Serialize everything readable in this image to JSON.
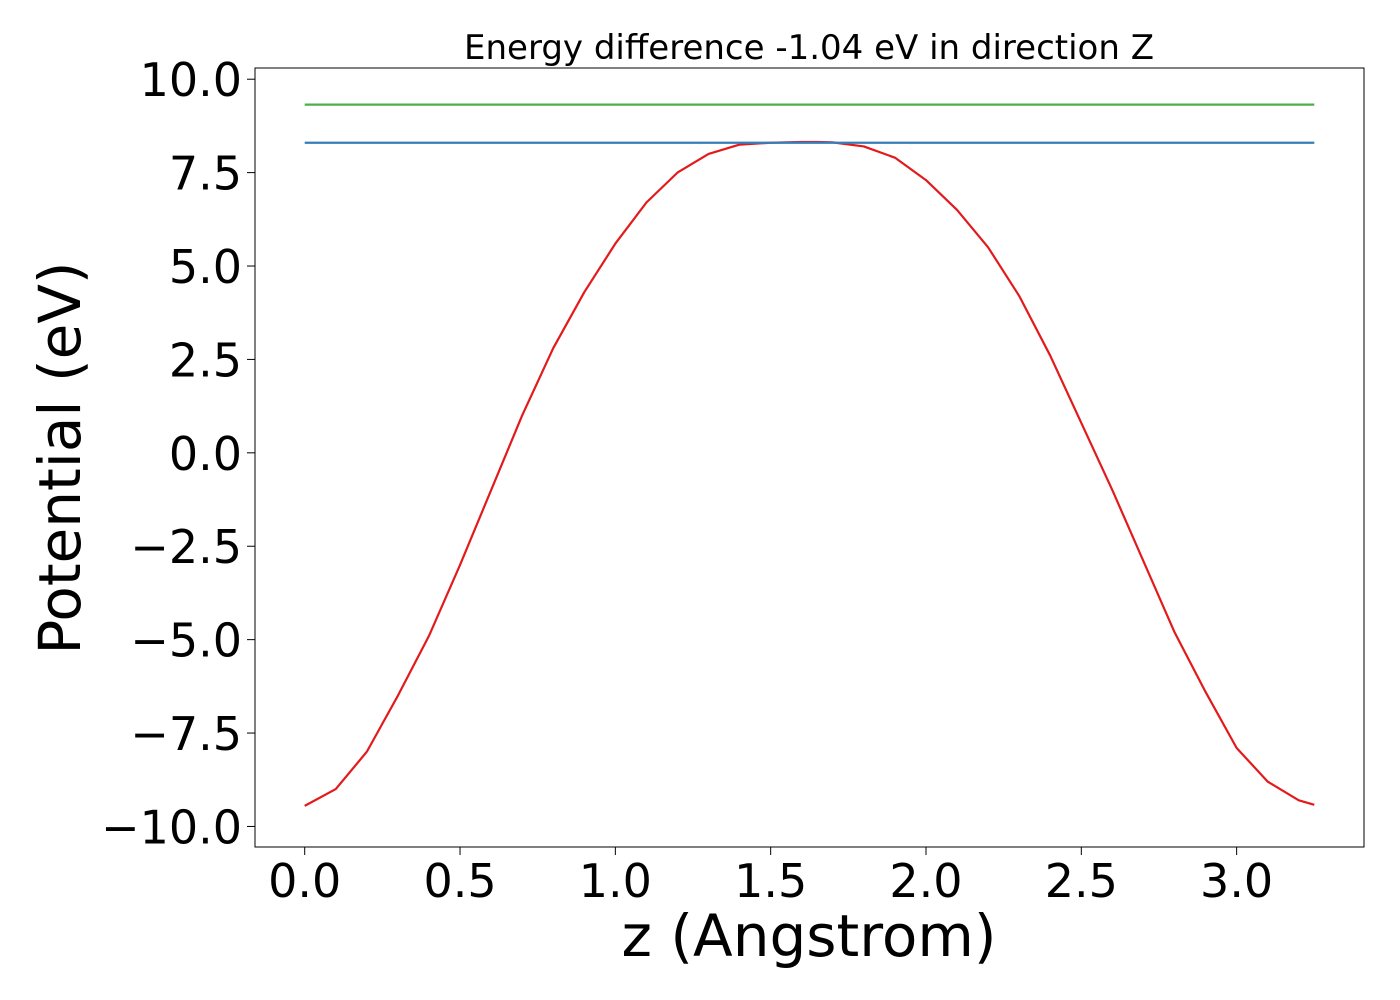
{
  "chart_data": {
    "type": "line",
    "title": "Energy difference -1.04 eV in direction Z",
    "xlabel": "z (Angstrom)",
    "ylabel": "Potential (eV)",
    "xlim": [
      -0.16,
      3.41
    ],
    "ylim": [
      -10.55,
      10.3
    ],
    "x_ticks": [
      {
        "value": 0.0,
        "label": "0.0"
      },
      {
        "value": 0.5,
        "label": "0.5"
      },
      {
        "value": 1.0,
        "label": "1.0"
      },
      {
        "value": 1.5,
        "label": "1.5"
      },
      {
        "value": 2.0,
        "label": "2.0"
      },
      {
        "value": 2.5,
        "label": "2.5"
      },
      {
        "value": 3.0,
        "label": "3.0"
      }
    ],
    "y_ticks": [
      {
        "value": -10.0,
        "label": "−10.0"
      },
      {
        "value": -7.5,
        "label": "−7.5"
      },
      {
        "value": -5.0,
        "label": "−5.0"
      },
      {
        "value": -2.5,
        "label": "−2.5"
      },
      {
        "value": 0.0,
        "label": "0.0"
      },
      {
        "value": 2.5,
        "label": "2.5"
      },
      {
        "value": 5.0,
        "label": "5.0"
      },
      {
        "value": 7.5,
        "label": "7.5"
      },
      {
        "value": 10.0,
        "label": "10.0"
      }
    ],
    "grid": false,
    "legend": "none",
    "series": [
      {
        "color": "#e31a1c",
        "x": [
          0.0,
          0.1,
          0.2,
          0.3,
          0.4,
          0.5,
          0.6,
          0.7,
          0.8,
          0.9,
          1.0,
          1.1,
          1.2,
          1.3,
          1.4,
          1.5,
          1.6,
          1.65,
          1.7,
          1.8,
          1.9,
          2.0,
          2.1,
          2.2,
          2.3,
          2.4,
          2.5,
          2.6,
          2.7,
          2.8,
          2.9,
          3.0,
          3.1,
          3.2,
          3.25
        ],
        "y": [
          -9.45,
          -9.0,
          -8.0,
          -6.5,
          -4.9,
          -3.0,
          -1.0,
          1.0,
          2.8,
          4.3,
          5.6,
          6.7,
          7.5,
          8.0,
          8.25,
          8.3,
          8.32,
          8.32,
          8.31,
          8.2,
          7.9,
          7.3,
          6.5,
          5.5,
          4.2,
          2.6,
          0.8,
          -1.0,
          -2.9,
          -4.8,
          -6.4,
          -7.9,
          -8.8,
          -9.3,
          -9.42
        ]
      },
      {
        "color": "#377eb8",
        "x": [
          0.0,
          3.25
        ],
        "y": [
          8.3,
          8.3
        ]
      },
      {
        "color": "#4daf4a",
        "x": [
          0.0,
          3.25
        ],
        "y": [
          9.32,
          9.32
        ]
      }
    ]
  }
}
